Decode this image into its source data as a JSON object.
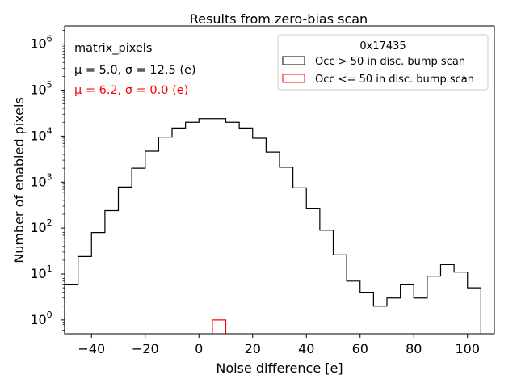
{
  "chart_data": {
    "type": "histogram",
    "title": "Results from zero-bias scan",
    "xlabel": "Noise difference [e]",
    "ylabel": "Number of enabled pixels",
    "xlim": [
      -50,
      110
    ],
    "ylim": [
      0.5,
      2500000
    ],
    "yscale": "log",
    "x_ticks": [
      -40,
      -20,
      0,
      20,
      40,
      60,
      80,
      100
    ],
    "x_tick_labels": [
      "−40",
      "−20",
      "0",
      "20",
      "40",
      "60",
      "80",
      "100"
    ],
    "y_ticks": [
      1,
      10,
      100,
      1000,
      10000,
      100000,
      1000000
    ],
    "y_tick_bases": [
      "10",
      "10",
      "10",
      "10",
      "10",
      "10",
      "10"
    ],
    "y_tick_exps": [
      "0",
      "1",
      "2",
      "3",
      "4",
      "5",
      "6"
    ],
    "bin_edges": [
      -50,
      -45,
      -40,
      -35,
      -30,
      -25,
      -20,
      -15,
      -10,
      -5,
      0,
      5,
      10,
      15,
      20,
      25,
      30,
      35,
      40,
      45,
      50,
      55,
      60,
      65,
      70,
      75,
      80,
      85,
      90,
      95,
      100,
      105
    ],
    "series": [
      {
        "name": "Occ > 50 in disc. bump scan",
        "color": "#000000",
        "counts": [
          6,
          24,
          80,
          240,
          780,
          2000,
          4700,
          9500,
          15000,
          20000,
          24000,
          24000,
          20000,
          15000,
          9000,
          4500,
          2100,
          750,
          270,
          90,
          26,
          7,
          4,
          2,
          3,
          6,
          3,
          9,
          16,
          11,
          5
        ]
      },
      {
        "name": "Occ <= 50 in disc. bump scan",
        "color": "#ff0000",
        "bins": [
          [
            5,
            10
          ]
        ],
        "counts": [
          1
        ]
      }
    ],
    "legend": {
      "title": "0x17435",
      "position": "top-right"
    },
    "annotations": {
      "label": "matrix_pixels",
      "stats_black": "μ = 5.0, σ = 12.5 (e)",
      "stats_red": "μ = 6.2, σ = 0.0 (e)",
      "black_color": "#000000",
      "red_color": "#ff0000"
    }
  }
}
